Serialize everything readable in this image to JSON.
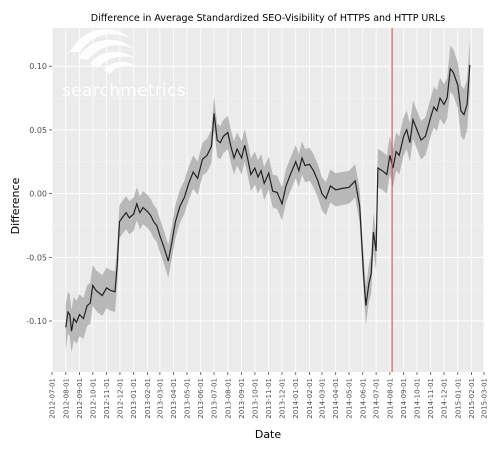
{
  "chart_data": {
    "type": "line",
    "title": "Difference in Average Standardized SEO-Visibility of HTTPS and HTTP URLs",
    "xlabel": "Date",
    "ylabel": "Difference",
    "xlim": [
      "2012-07-01",
      "2015-03-01"
    ],
    "ylim": [
      -0.14,
      0.13
    ],
    "y_ticks": [
      -0.1,
      -0.05,
      0.0,
      0.05,
      0.1
    ],
    "y_tick_labels": [
      "-0.10",
      "-0.05",
      "0.00",
      "0.05",
      "0.10"
    ],
    "x_tick_labels": [
      "2012-07-01",
      "2012-08-01",
      "2012-09-01",
      "2012-10-01",
      "2012-11-01",
      "2012-12-01",
      "2013-01-01",
      "2013-02-01",
      "2013-03-01",
      "2013-04-01",
      "2013-05-01",
      "2013-06-01",
      "2013-07-01",
      "2013-08-01",
      "2013-09-01",
      "2013-10-01",
      "2013-11-01",
      "2013-12-01",
      "2014-01-01",
      "2014-02-01",
      "2014-03-01",
      "2014-04-01",
      "2014-05-01",
      "2014-06-01",
      "2014-07-01",
      "2014-08-01",
      "2014-09-01",
      "2014-10-01",
      "2014-11-01",
      "2014-12-01",
      "2015-01-01",
      "2015-02-01",
      "2015-03-01"
    ],
    "grid": true,
    "vline": {
      "x": "2014-08-06",
      "color": "#e0413a"
    },
    "series": [
      {
        "color": "#222222",
        "band_color": "#b3b3b3",
        "points": [
          {
            "x": "2012-08-01",
            "y": -0.105,
            "lo": -0.122,
            "hi": -0.087
          },
          {
            "x": "2012-08-06",
            "y": -0.093,
            "lo": -0.11,
            "hi": -0.077
          },
          {
            "x": "2012-08-10",
            "y": -0.095,
            "lo": -0.112,
            "hi": -0.079
          },
          {
            "x": "2012-08-14",
            "y": -0.108,
            "lo": -0.125,
            "hi": -0.091
          },
          {
            "x": "2012-08-19",
            "y": -0.098,
            "lo": -0.115,
            "hi": -0.081
          },
          {
            "x": "2012-08-25",
            "y": -0.101,
            "lo": -0.118,
            "hi": -0.084
          },
          {
            "x": "2012-09-01",
            "y": -0.095,
            "lo": -0.112,
            "hi": -0.079
          },
          {
            "x": "2012-09-10",
            "y": -0.098,
            "lo": -0.114,
            "hi": -0.082
          },
          {
            "x": "2012-09-18",
            "y": -0.088,
            "lo": -0.104,
            "hi": -0.072
          },
          {
            "x": "2012-09-25",
            "y": -0.086,
            "lo": -0.102,
            "hi": -0.07
          },
          {
            "x": "2012-10-01",
            "y": -0.072,
            "lo": -0.088,
            "hi": -0.056
          },
          {
            "x": "2012-10-08",
            "y": -0.076,
            "lo": -0.092,
            "hi": -0.06
          },
          {
            "x": "2012-10-15",
            "y": -0.078,
            "lo": -0.094,
            "hi": -0.062
          },
          {
            "x": "2012-10-22",
            "y": -0.08,
            "lo": -0.096,
            "hi": -0.064
          },
          {
            "x": "2012-11-01",
            "y": -0.074,
            "lo": -0.09,
            "hi": -0.058
          },
          {
            "x": "2012-11-10",
            "y": -0.076,
            "lo": -0.092,
            "hi": -0.06
          },
          {
            "x": "2012-11-20",
            "y": -0.077,
            "lo": -0.093,
            "hi": -0.061
          },
          {
            "x": "2012-11-25",
            "y": -0.055,
            "lo": -0.071,
            "hi": -0.039
          },
          {
            "x": "2012-11-30",
            "y": -0.022,
            "lo": -0.035,
            "hi": -0.009
          },
          {
            "x": "2012-12-08",
            "y": -0.018,
            "lo": -0.031,
            "hi": -0.005
          },
          {
            "x": "2012-12-15",
            "y": -0.015,
            "lo": -0.028,
            "hi": -0.002
          },
          {
            "x": "2012-12-22",
            "y": -0.019,
            "lo": -0.032,
            "hi": -0.006
          },
          {
            "x": "2013-01-01",
            "y": -0.016,
            "lo": -0.029,
            "hi": -0.003
          },
          {
            "x": "2013-01-08",
            "y": -0.008,
            "lo": -0.021,
            "hi": 0.005
          },
          {
            "x": "2013-01-15",
            "y": -0.015,
            "lo": -0.028,
            "hi": -0.002
          },
          {
            "x": "2013-01-22",
            "y": -0.011,
            "lo": -0.024,
            "hi": 0.002
          },
          {
            "x": "2013-02-01",
            "y": -0.014,
            "lo": -0.027,
            "hi": -0.001
          },
          {
            "x": "2013-02-08",
            "y": -0.017,
            "lo": -0.03,
            "hi": -0.004
          },
          {
            "x": "2013-02-15",
            "y": -0.022,
            "lo": -0.035,
            "hi": -0.009
          },
          {
            "x": "2013-02-22",
            "y": -0.025,
            "lo": -0.038,
            "hi": -0.012
          },
          {
            "x": "2013-03-01",
            "y": -0.033,
            "lo": -0.046,
            "hi": -0.02
          },
          {
            "x": "2013-03-10",
            "y": -0.042,
            "lo": -0.055,
            "hi": -0.029
          },
          {
            "x": "2013-03-20",
            "y": -0.053,
            "lo": -0.066,
            "hi": -0.04
          },
          {
            "x": "2013-03-28",
            "y": -0.038,
            "lo": -0.051,
            "hi": -0.025
          },
          {
            "x": "2013-04-05",
            "y": -0.022,
            "lo": -0.035,
            "hi": -0.009
          },
          {
            "x": "2013-04-15",
            "y": -0.01,
            "lo": -0.023,
            "hi": 0.003
          },
          {
            "x": "2013-04-25",
            "y": -0.003,
            "lo": -0.016,
            "hi": 0.01
          },
          {
            "x": "2013-05-05",
            "y": 0.008,
            "lo": -0.005,
            "hi": 0.021
          },
          {
            "x": "2013-05-15",
            "y": 0.017,
            "lo": 0.004,
            "hi": 0.03
          },
          {
            "x": "2013-05-25",
            "y": 0.012,
            "lo": -0.001,
            "hi": 0.025
          },
          {
            "x": "2013-06-05",
            "y": 0.027,
            "lo": 0.014,
            "hi": 0.04
          },
          {
            "x": "2013-06-15",
            "y": 0.03,
            "lo": 0.017,
            "hi": 0.043
          },
          {
            "x": "2013-06-25",
            "y": 0.037,
            "lo": 0.024,
            "hi": 0.05
          },
          {
            "x": "2013-07-01",
            "y": 0.063,
            "lo": 0.05,
            "hi": 0.076
          },
          {
            "x": "2013-07-08",
            "y": 0.042,
            "lo": 0.029,
            "hi": 0.055
          },
          {
            "x": "2013-07-15",
            "y": 0.04,
            "lo": 0.027,
            "hi": 0.053
          },
          {
            "x": "2013-07-22",
            "y": 0.045,
            "lo": 0.032,
            "hi": 0.058
          },
          {
            "x": "2013-08-01",
            "y": 0.048,
            "lo": 0.035,
            "hi": 0.061
          },
          {
            "x": "2013-08-08",
            "y": 0.037,
            "lo": 0.024,
            "hi": 0.05
          },
          {
            "x": "2013-08-15",
            "y": 0.028,
            "lo": 0.015,
            "hi": 0.041
          },
          {
            "x": "2013-08-22",
            "y": 0.035,
            "lo": 0.022,
            "hi": 0.048
          },
          {
            "x": "2013-09-01",
            "y": 0.028,
            "lo": 0.015,
            "hi": 0.041
          },
          {
            "x": "2013-09-08",
            "y": 0.038,
            "lo": 0.025,
            "hi": 0.051
          },
          {
            "x": "2013-09-15",
            "y": 0.027,
            "lo": 0.014,
            "hi": 0.04
          },
          {
            "x": "2013-09-22",
            "y": 0.015,
            "lo": 0.002,
            "hi": 0.028
          },
          {
            "x": "2013-10-01",
            "y": 0.02,
            "lo": 0.007,
            "hi": 0.033
          },
          {
            "x": "2013-10-08",
            "y": 0.013,
            "lo": 0.0,
            "hi": 0.026
          },
          {
            "x": "2013-10-15",
            "y": 0.018,
            "lo": 0.005,
            "hi": 0.031
          },
          {
            "x": "2013-10-22",
            "y": 0.008,
            "lo": -0.005,
            "hi": 0.021
          },
          {
            "x": "2013-11-01",
            "y": 0.016,
            "lo": 0.003,
            "hi": 0.029
          },
          {
            "x": "2013-11-10",
            "y": 0.002,
            "lo": -0.011,
            "hi": 0.015
          },
          {
            "x": "2013-11-20",
            "y": 0.001,
            "lo": -0.012,
            "hi": 0.014
          },
          {
            "x": "2013-12-01",
            "y": -0.008,
            "lo": -0.021,
            "hi": 0.005
          },
          {
            "x": "2013-12-10",
            "y": 0.006,
            "lo": -0.007,
            "hi": 0.019
          },
          {
            "x": "2013-12-20",
            "y": 0.015,
            "lo": 0.002,
            "hi": 0.028
          },
          {
            "x": "2014-01-01",
            "y": 0.025,
            "lo": 0.012,
            "hi": 0.038
          },
          {
            "x": "2014-01-08",
            "y": 0.018,
            "lo": 0.005,
            "hi": 0.031
          },
          {
            "x": "2014-01-15",
            "y": 0.028,
            "lo": 0.015,
            "hi": 0.041
          },
          {
            "x": "2014-01-22",
            "y": 0.022,
            "lo": 0.009,
            "hi": 0.035
          },
          {
            "x": "2014-02-01",
            "y": 0.023,
            "lo": 0.01,
            "hi": 0.036
          },
          {
            "x": "2014-02-10",
            "y": 0.018,
            "lo": 0.005,
            "hi": 0.031
          },
          {
            "x": "2014-02-20",
            "y": 0.01,
            "lo": -0.003,
            "hi": 0.023
          },
          {
            "x": "2014-03-01",
            "y": 0.0,
            "lo": -0.013,
            "hi": 0.013
          },
          {
            "x": "2014-03-10",
            "y": -0.004,
            "lo": -0.017,
            "hi": 0.009
          },
          {
            "x": "2014-03-20",
            "y": 0.006,
            "lo": -0.007,
            "hi": 0.019
          },
          {
            "x": "2014-04-01",
            "y": 0.003,
            "lo": -0.01,
            "hi": 0.016
          },
          {
            "x": "2014-04-15",
            "y": 0.004,
            "lo": -0.009,
            "hi": 0.017
          },
          {
            "x": "2014-05-01",
            "y": 0.005,
            "lo": -0.008,
            "hi": 0.018
          },
          {
            "x": "2014-05-15",
            "y": 0.01,
            "lo": -0.003,
            "hi": 0.023
          },
          {
            "x": "2014-05-25",
            "y": -0.01,
            "lo": -0.023,
            "hi": 0.003
          },
          {
            "x": "2014-06-03",
            "y": -0.065,
            "lo": -0.08,
            "hi": -0.05
          },
          {
            "x": "2014-06-08",
            "y": -0.088,
            "lo": -0.103,
            "hi": -0.073
          },
          {
            "x": "2014-06-15",
            "y": -0.07,
            "lo": -0.085,
            "hi": -0.055
          },
          {
            "x": "2014-06-20",
            "y": -0.063,
            "lo": -0.078,
            "hi": -0.048
          },
          {
            "x": "2014-06-25",
            "y": -0.03,
            "lo": -0.045,
            "hi": -0.015
          },
          {
            "x": "2014-07-01",
            "y": -0.045,
            "lo": -0.06,
            "hi": -0.03
          },
          {
            "x": "2014-07-05",
            "y": 0.02,
            "lo": 0.005,
            "hi": 0.035
          },
          {
            "x": "2014-07-15",
            "y": 0.018,
            "lo": 0.003,
            "hi": 0.033
          },
          {
            "x": "2014-07-25",
            "y": 0.015,
            "lo": 0.0,
            "hi": 0.03
          },
          {
            "x": "2014-08-01",
            "y": 0.03,
            "lo": 0.015,
            "hi": 0.045
          },
          {
            "x": "2014-08-08",
            "y": 0.02,
            "lo": 0.005,
            "hi": 0.035
          },
          {
            "x": "2014-08-15",
            "y": 0.033,
            "lo": 0.018,
            "hi": 0.048
          },
          {
            "x": "2014-08-22",
            "y": 0.03,
            "lo": 0.015,
            "hi": 0.045
          },
          {
            "x": "2014-09-01",
            "y": 0.045,
            "lo": 0.03,
            "hi": 0.06
          },
          {
            "x": "2014-09-08",
            "y": 0.05,
            "lo": 0.035,
            "hi": 0.065
          },
          {
            "x": "2014-09-15",
            "y": 0.04,
            "lo": 0.025,
            "hi": 0.055
          },
          {
            "x": "2014-09-22",
            "y": 0.058,
            "lo": 0.043,
            "hi": 0.073
          },
          {
            "x": "2014-10-01",
            "y": 0.05,
            "lo": 0.035,
            "hi": 0.065
          },
          {
            "x": "2014-10-10",
            "y": 0.042,
            "lo": 0.027,
            "hi": 0.057
          },
          {
            "x": "2014-10-20",
            "y": 0.045,
            "lo": 0.03,
            "hi": 0.06
          },
          {
            "x": "2014-11-01",
            "y": 0.06,
            "lo": 0.045,
            "hi": 0.075
          },
          {
            "x": "2014-11-08",
            "y": 0.068,
            "lo": 0.052,
            "hi": 0.084
          },
          {
            "x": "2014-11-15",
            "y": 0.065,
            "lo": 0.049,
            "hi": 0.081
          },
          {
            "x": "2014-11-22",
            "y": 0.075,
            "lo": 0.059,
            "hi": 0.091
          },
          {
            "x": "2014-12-01",
            "y": 0.07,
            "lo": 0.054,
            "hi": 0.086
          },
          {
            "x": "2014-12-08",
            "y": 0.075,
            "lo": 0.059,
            "hi": 0.091
          },
          {
            "x": "2014-12-15",
            "y": 0.098,
            "lo": 0.08,
            "hi": 0.116
          },
          {
            "x": "2014-12-22",
            "y": 0.095,
            "lo": 0.077,
            "hi": 0.113
          },
          {
            "x": "2015-01-01",
            "y": 0.085,
            "lo": 0.067,
            "hi": 0.103
          },
          {
            "x": "2015-01-08",
            "y": 0.065,
            "lo": 0.045,
            "hi": 0.085
          },
          {
            "x": "2015-01-15",
            "y": 0.062,
            "lo": 0.042,
            "hi": 0.082
          },
          {
            "x": "2015-01-22",
            "y": 0.07,
            "lo": 0.05,
            "hi": 0.09
          },
          {
            "x": "2015-01-28",
            "y": 0.101,
            "lo": 0.08,
            "hi": 0.122
          }
        ]
      }
    ]
  },
  "watermark": {
    "text": "searchmetrics",
    "icon": "searchmetrics-logo-icon"
  }
}
